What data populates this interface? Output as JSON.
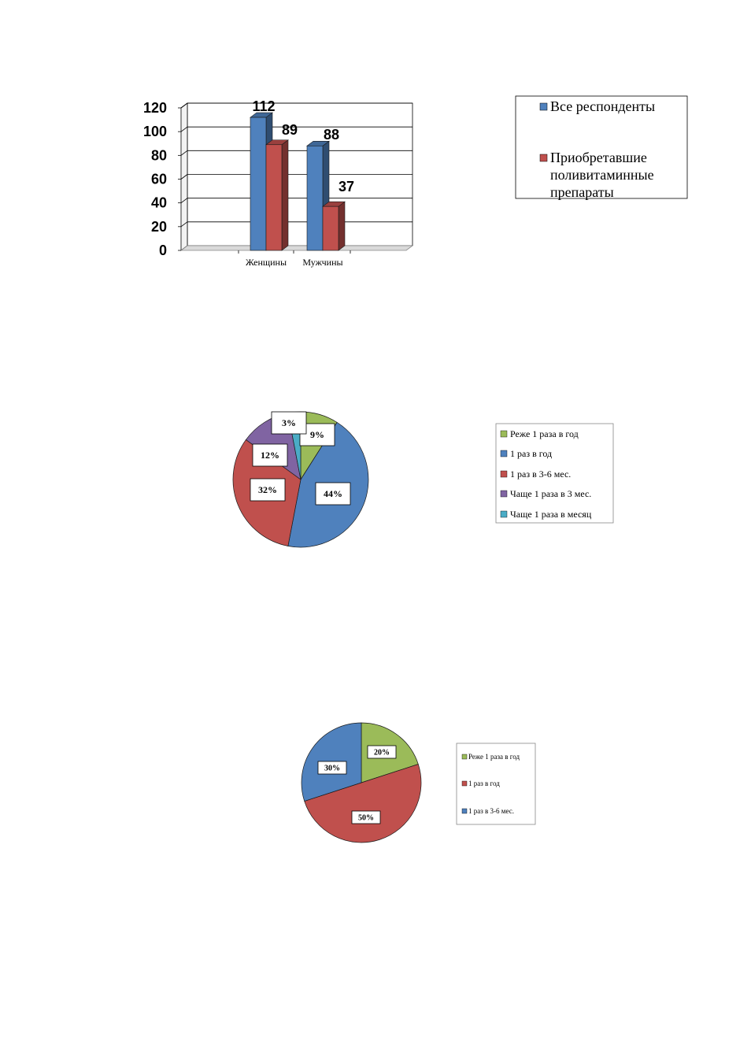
{
  "chart_data": [
    {
      "type": "bar",
      "categories": [
        "Женщины",
        "Мужчины"
      ],
      "series": [
        {
          "name": "Все респонденты",
          "values": [
            112,
            88
          ],
          "color": "#4F81BD"
        },
        {
          "name": "Приобретавшие поливитаминные препараты",
          "values": [
            89,
            37
          ],
          "color": "#C0504D"
        }
      ],
      "yticks": [
        "0",
        "20",
        "40",
        "60",
        "80",
        "100",
        "120"
      ],
      "ylim": [
        0,
        120
      ],
      "grid": true,
      "legend_position": "right",
      "legend": [
        {
          "lines": [
            "Все респонденты"
          ],
          "color": "#4F81BD"
        },
        {
          "lines": [
            "Приобретавшие",
            "поливитаминные",
            "препараты"
          ],
          "color": "#C0504D"
        }
      ]
    },
    {
      "type": "pie",
      "labels": [
        "Реже 1 раза в год",
        "1 раз в год",
        "1 раз в 3-6 мес.",
        "Чаще 1 раза в 3 мес.",
        "Чаще 1 раза в месяц"
      ],
      "values": [
        9,
        44,
        32,
        12,
        3
      ],
      "value_labels": [
        "9%",
        "44%",
        "32%",
        "12%",
        "3%"
      ],
      "colors": [
        "#9BBB59",
        "#4F81BD",
        "#C0504D",
        "#8064A2",
        "#4BACC6"
      ],
      "legend_position": "right"
    },
    {
      "type": "pie",
      "labels": [
        "Реже 1 раза в год",
        "1 раз в год",
        "1 раз в 3-6 мес."
      ],
      "values": [
        20,
        50,
        30
      ],
      "value_labels": [
        "20%",
        "50%",
        "30%"
      ],
      "colors": [
        "#9BBB59",
        "#C0504D",
        "#4F81BD"
      ],
      "legend_position": "right"
    }
  ]
}
